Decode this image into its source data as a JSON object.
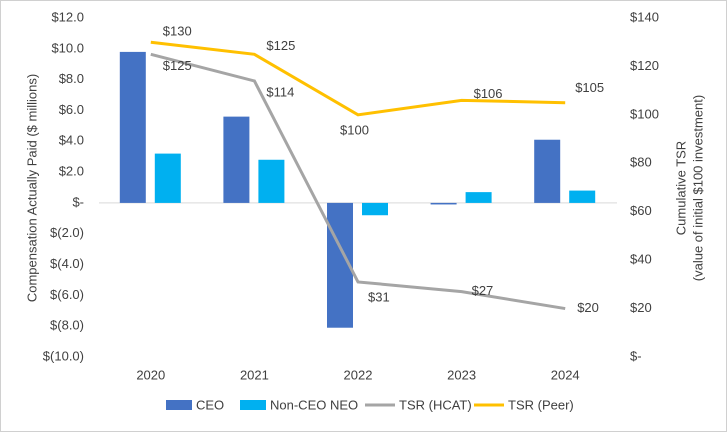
{
  "chart_data": {
    "type": "combo",
    "ylabel": "Compensation Actually Paid ($ millions)",
    "y2label": [
      "Cumulative TSR",
      "(value of initial $100 investment)"
    ],
    "categories": [
      "2020",
      "2021",
      "2022",
      "2023",
      "2024"
    ],
    "ylim": [
      -10,
      12
    ],
    "yticks": [
      {
        "value": -10,
        "label": "$(10.0)"
      },
      {
        "value": -8,
        "label": "$(8.0)"
      },
      {
        "value": -6,
        "label": "$(6.0)"
      },
      {
        "value": -4,
        "label": "$(4.0)"
      },
      {
        "value": -2,
        "label": "$(2.0)"
      },
      {
        "value": 0,
        "label": "$-"
      },
      {
        "value": 2,
        "label": "$2.0"
      },
      {
        "value": 4,
        "label": "$4.0"
      },
      {
        "value": 6,
        "label": "$6.0"
      },
      {
        "value": 8,
        "label": "$8.0"
      },
      {
        "value": 10,
        "label": "$10.0"
      },
      {
        "value": 12,
        "label": "$12.0"
      }
    ],
    "y2lim": [
      0,
      140
    ],
    "y2ticks": [
      {
        "value": 0,
        "label": "$-"
      },
      {
        "value": 20,
        "label": "$20"
      },
      {
        "value": 40,
        "label": "$40"
      },
      {
        "value": 60,
        "label": "$60"
      },
      {
        "value": 80,
        "label": "$80"
      },
      {
        "value": 100,
        "label": "$100"
      },
      {
        "value": 120,
        "label": "$120"
      },
      {
        "value": 140,
        "label": "$140"
      }
    ],
    "series": [
      {
        "name": "CEO",
        "type": "bar",
        "color": "#4472c4",
        "values": [
          9.8,
          5.6,
          -8.1,
          -0.1,
          4.1
        ]
      },
      {
        "name": "Non-CEO NEO",
        "type": "bar",
        "color": "#00b0f0",
        "values": [
          3.2,
          2.8,
          -0.8,
          0.7,
          0.8
        ]
      },
      {
        "name": "TSR (HCAT)",
        "type": "line",
        "axis": "y2",
        "color": "#a5a5a5",
        "values": [
          125,
          114,
          31,
          27,
          20
        ],
        "value_labels": [
          "$125",
          "$114",
          "$31",
          "$27",
          "$20"
        ]
      },
      {
        "name": "TSR (Peer)",
        "type": "line",
        "axis": "y2",
        "color": "#ffc000",
        "values": [
          130,
          125,
          100,
          106,
          105
        ],
        "value_labels": [
          "$130",
          "$125",
          "$100",
          "$106",
          "$105"
        ]
      }
    ],
    "grid": false,
    "legend": "bottom"
  }
}
